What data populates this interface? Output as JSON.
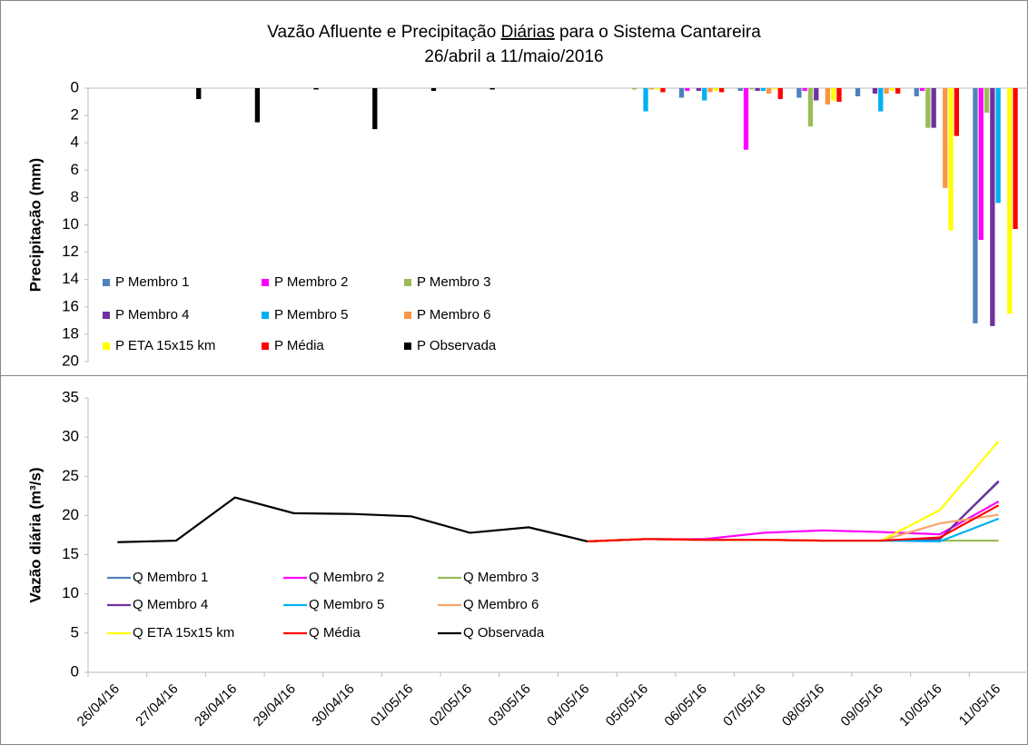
{
  "title": [
    "Vazão Afluente e Precipitação",
    "Diárias",
    "para o Sistema Cantareira"
  ],
  "subtitle": "26/abril a 11/maio/2016",
  "chart_data": [
    {
      "type": "bar",
      "y_label": "Precipitação (mm)",
      "ylim": [
        0,
        20
      ],
      "yticks": [
        0,
        2,
        4,
        6,
        8,
        10,
        12,
        14,
        16,
        18,
        20
      ],
      "inverted": true,
      "legend": "lower-left",
      "series": [
        {
          "name": "P Membro 1",
          "color": "#4f81bd",
          "values": [
            null,
            null,
            null,
            null,
            null,
            null,
            null,
            null,
            null,
            0,
            0.7,
            0.2,
            0.7,
            0.6,
            0.6,
            17.2
          ]
        },
        {
          "name": "P Membro 2",
          "color": "#ff00ff",
          "values": [
            null,
            null,
            null,
            null,
            null,
            null,
            null,
            null,
            null,
            0,
            0.2,
            4.5,
            0.2,
            0,
            0.2,
            11.1
          ]
        },
        {
          "name": "P Membro 3",
          "color": "#9bbb59",
          "values": [
            null,
            null,
            null,
            null,
            null,
            null,
            null,
            null,
            null,
            0.1,
            0,
            0.1,
            2.8,
            0,
            2.9,
            1.8
          ]
        },
        {
          "name": "P Membro 4",
          "color": "#7030a0",
          "values": [
            null,
            null,
            null,
            null,
            null,
            null,
            null,
            null,
            null,
            0,
            0.2,
            0.2,
            0.9,
            0.4,
            2.9,
            17.4
          ]
        },
        {
          "name": "P Membro 5",
          "color": "#00b0f0",
          "values": [
            null,
            null,
            null,
            null,
            null,
            null,
            null,
            null,
            null,
            1.7,
            0.9,
            0.2,
            0,
            1.7,
            0,
            8.4
          ]
        },
        {
          "name": "P Membro 6",
          "color": "#f79646",
          "values": [
            null,
            null,
            null,
            null,
            null,
            null,
            null,
            null,
            null,
            0.1,
            0.3,
            0.4,
            1.2,
            0.4,
            7.3,
            0
          ]
        },
        {
          "name": "P ETA 15x15 km",
          "color": "#ffff00",
          "values": [
            null,
            null,
            null,
            null,
            null,
            null,
            null,
            null,
            null,
            0.1,
            0.2,
            0.1,
            0.9,
            0.2,
            10.4,
            16.5
          ]
        },
        {
          "name": "P Média",
          "color": "#ff0000",
          "values": [
            null,
            null,
            null,
            null,
            null,
            null,
            null,
            null,
            null,
            0.3,
            0.3,
            0.8,
            1.0,
            0.4,
            3.5,
            10.3
          ]
        },
        {
          "name": "P Observada",
          "color": "#000000",
          "values": [
            0,
            0.8,
            2.5,
            0.1,
            3.0,
            0.2,
            0.1,
            0,
            0,
            null,
            null,
            null,
            null,
            null,
            null,
            null
          ]
        }
      ]
    },
    {
      "type": "line",
      "y_label": "Vazão diária (m³/s)",
      "ylim": [
        0,
        35
      ],
      "yticks": [
        0,
        5,
        10,
        15,
        20,
        25,
        30,
        35
      ],
      "legend": "lower-left",
      "categories": [
        "26/04/16",
        "27/04/16",
        "28/04/16",
        "29/04/16",
        "30/04/16",
        "01/05/16",
        "02/05/16",
        "03/05/16",
        "04/05/16",
        "05/05/16",
        "06/05/16",
        "07/05/16",
        "08/05/16",
        "09/05/16",
        "10/05/16",
        "11/05/16"
      ],
      "series": [
        {
          "name": "Q Membro 1",
          "color": "#4f81bd",
          "values": [
            null,
            null,
            null,
            null,
            null,
            null,
            null,
            null,
            16.7,
            17.0,
            16.9,
            16.9,
            16.8,
            16.8,
            17.0,
            24.3
          ]
        },
        {
          "name": "Q Membro 2",
          "color": "#ff00ff",
          "values": [
            null,
            null,
            null,
            null,
            null,
            null,
            null,
            null,
            16.7,
            17.0,
            17.0,
            17.8,
            18.1,
            17.9,
            17.6,
            21.8
          ]
        },
        {
          "name": "Q Membro 3",
          "color": "#9bbb59",
          "values": [
            null,
            null,
            null,
            null,
            null,
            null,
            null,
            null,
            16.7,
            17.0,
            16.9,
            16.9,
            16.8,
            16.8,
            16.8,
            16.8
          ]
        },
        {
          "name": "Q Membro 4",
          "color": "#7030a0",
          "values": [
            null,
            null,
            null,
            null,
            null,
            null,
            null,
            null,
            16.7,
            17.0,
            16.9,
            16.9,
            16.8,
            16.8,
            17.0,
            24.4
          ]
        },
        {
          "name": "Q Membro 5",
          "color": "#00b0f0",
          "values": [
            null,
            null,
            null,
            null,
            null,
            null,
            null,
            null,
            16.7,
            17.0,
            16.9,
            16.9,
            16.8,
            16.8,
            16.7,
            19.6
          ]
        },
        {
          "name": "Q Membro 6",
          "color": "#f7a46a",
          "values": [
            null,
            null,
            null,
            null,
            null,
            null,
            null,
            null,
            16.7,
            17.0,
            16.9,
            16.9,
            16.8,
            16.8,
            19.0,
            20.1
          ]
        },
        {
          "name": "Q ETA 15x15 km",
          "color": "#ffff00",
          "values": [
            null,
            null,
            null,
            null,
            null,
            null,
            null,
            null,
            16.7,
            17.0,
            16.9,
            16.9,
            16.8,
            16.8,
            20.7,
            29.5
          ]
        },
        {
          "name": "Q Média",
          "color": "#ff0000",
          "values": [
            null,
            null,
            null,
            null,
            null,
            null,
            null,
            null,
            16.7,
            17.0,
            16.9,
            16.9,
            16.8,
            16.8,
            17.2,
            21.3
          ]
        },
        {
          "name": "Q Observada",
          "color": "#000000",
          "values": [
            16.6,
            16.8,
            22.3,
            20.3,
            20.2,
            19.9,
            17.8,
            18.5,
            16.7,
            null,
            null,
            null,
            null,
            null,
            null,
            null
          ]
        }
      ]
    }
  ]
}
